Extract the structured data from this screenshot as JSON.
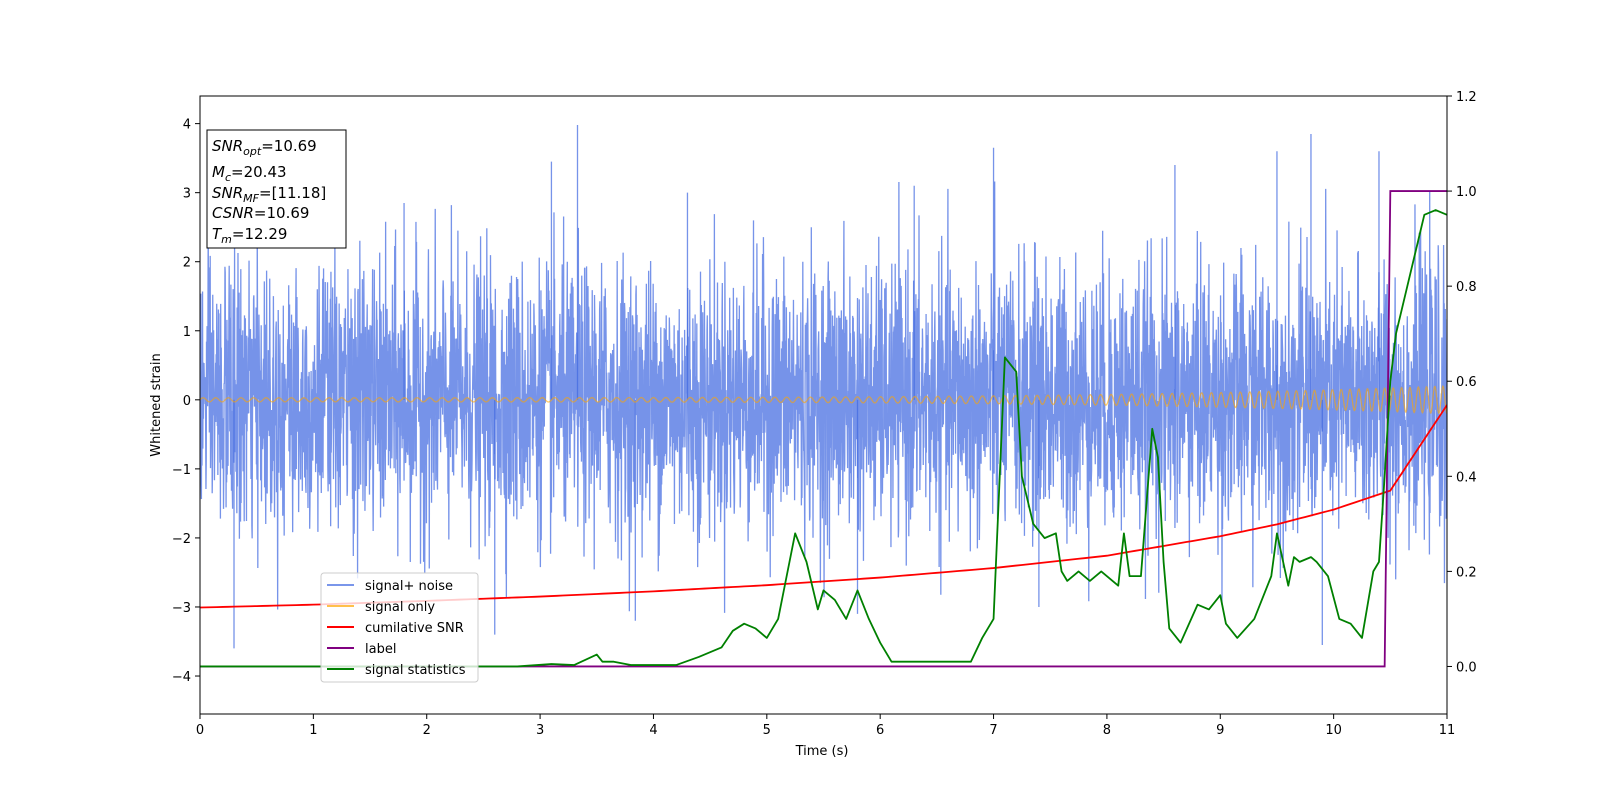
{
  "chart_data": {
    "type": "line",
    "xlabel": "Time (s)",
    "ylabel": "Whitened strain",
    "xlim": [
      0,
      11
    ],
    "ylim_left": [
      -4.55,
      4.4
    ],
    "ylim_right": [
      -0.1,
      1.2
    ],
    "x_ticks": [
      0,
      1,
      2,
      3,
      4,
      5,
      6,
      7,
      8,
      9,
      10,
      11
    ],
    "y_ticks_left": [
      -4,
      -3,
      -2,
      -1,
      0,
      1,
      2,
      3,
      4
    ],
    "y_ticks_right": [
      0.0,
      0.2,
      0.4,
      0.6,
      0.8,
      1.0,
      1.2
    ],
    "legend": {
      "position": "lower-left",
      "entries": [
        {
          "label": "signal+ noise",
          "color": "#4169e1"
        },
        {
          "label": "signal only",
          "color": "#ffa500"
        },
        {
          "label": "cumilative SNR",
          "color": "#ff0000"
        },
        {
          "label": "label",
          "color": "#800080"
        },
        {
          "label": "signal statistics",
          "color": "#008000"
        }
      ]
    },
    "info_box": {
      "position": "upper-left",
      "lines": [
        {
          "base": "SNR",
          "sub": "opt",
          "value": "=10.69"
        },
        {
          "base": "M",
          "sub": "c",
          "value": "=20.43"
        },
        {
          "base": "SNR",
          "sub": "MF",
          "value": "=[11.18]"
        },
        {
          "base": "CSNR",
          "sub": "",
          "value": "=10.69"
        },
        {
          "base": "T",
          "sub": "m",
          "value": "=12.29"
        }
      ]
    },
    "series": [
      {
        "name": "signal+ noise",
        "axis": "left",
        "color": "#4169e1",
        "description_level": "noise band approx ±1.5 typical, peaks to ±3.9",
        "peak_points": [
          [
            0.3,
            -3.6
          ],
          [
            1.8,
            2.85
          ],
          [
            2.6,
            -3.4
          ],
          [
            3.1,
            3.45
          ],
          [
            3.33,
            3.98
          ],
          [
            3.84,
            -3.2
          ],
          [
            4.3,
            3.0
          ],
          [
            5.8,
            -3.1
          ],
          [
            6.3,
            3.1
          ],
          [
            7.0,
            3.65
          ],
          [
            7.4,
            -3.0
          ],
          [
            8.6,
            3.4
          ],
          [
            9.5,
            3.6
          ],
          [
            9.8,
            3.85
          ],
          [
            9.9,
            -3.55
          ],
          [
            10.4,
            3.6
          ]
        ]
      },
      {
        "name": "signal only",
        "axis": "left",
        "color": "#ffa500",
        "amplitude_start": 0.03,
        "amplitude_end": 0.2
      },
      {
        "name": "cumilative SNR",
        "axis": "right",
        "color": "#ff0000",
        "x": [
          0,
          1,
          2,
          3,
          4,
          5,
          6,
          7,
          8,
          9,
          9.5,
          10,
          10.5,
          11
        ],
        "y": [
          0.124,
          0.13,
          0.138,
          0.147,
          0.158,
          0.171,
          0.187,
          0.207,
          0.233,
          0.274,
          0.299,
          0.33,
          0.37,
          0.55
        ]
      },
      {
        "name": "label",
        "axis": "right",
        "color": "#800080",
        "x": [
          0,
          10.45,
          10.5,
          11
        ],
        "y": [
          0,
          0,
          1,
          1
        ]
      },
      {
        "name": "signal statistics",
        "axis": "right",
        "color": "#008000",
        "x": [
          0,
          0.3,
          1.0,
          2.0,
          2.8,
          3.1,
          3.3,
          3.5,
          3.55,
          3.65,
          3.8,
          3.9,
          4.2,
          4.4,
          4.5,
          4.6,
          4.7,
          4.8,
          4.9,
          5.0,
          5.05,
          5.1,
          5.2,
          5.25,
          5.35,
          5.45,
          5.5,
          5.6,
          5.7,
          5.8,
          5.9,
          6.0,
          6.1,
          6.2,
          6.4,
          6.6,
          6.8,
          6.9,
          7.0,
          7.1,
          7.2,
          7.25,
          7.35,
          7.45,
          7.55,
          7.6,
          7.65,
          7.75,
          7.85,
          7.95,
          8.0,
          8.1,
          8.15,
          8.2,
          8.3,
          8.4,
          8.45,
          8.5,
          8.55,
          8.65,
          8.8,
          8.9,
          9.0,
          9.05,
          9.15,
          9.3,
          9.45,
          9.5,
          9.6,
          9.65,
          9.7,
          9.8,
          9.85,
          9.95,
          10.05,
          10.15,
          10.25,
          10.35,
          10.4,
          10.45,
          10.5,
          10.55,
          10.65,
          10.75,
          10.8,
          10.9,
          11.0
        ],
        "y": [
          0.0,
          0.0,
          0.0,
          0.0,
          0.0,
          0.005,
          0.003,
          0.025,
          0.01,
          0.01,
          0.003,
          0.003,
          0.003,
          0.02,
          0.03,
          0.04,
          0.075,
          0.09,
          0.08,
          0.06,
          0.08,
          0.1,
          0.22,
          0.28,
          0.22,
          0.12,
          0.16,
          0.14,
          0.1,
          0.16,
          0.1,
          0.05,
          0.01,
          0.01,
          0.01,
          0.01,
          0.01,
          0.06,
          0.1,
          0.65,
          0.62,
          0.4,
          0.3,
          0.27,
          0.28,
          0.2,
          0.18,
          0.2,
          0.18,
          0.2,
          0.19,
          0.17,
          0.28,
          0.19,
          0.19,
          0.5,
          0.44,
          0.22,
          0.08,
          0.05,
          0.13,
          0.12,
          0.15,
          0.09,
          0.06,
          0.1,
          0.19,
          0.28,
          0.17,
          0.23,
          0.22,
          0.23,
          0.22,
          0.19,
          0.1,
          0.09,
          0.06,
          0.2,
          0.22,
          0.4,
          0.6,
          0.7,
          0.8,
          0.9,
          0.95,
          0.96,
          0.95
        ]
      }
    ]
  }
}
